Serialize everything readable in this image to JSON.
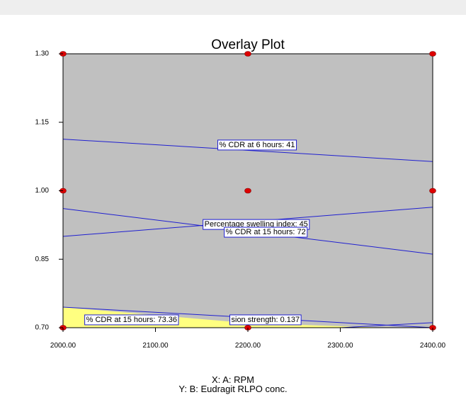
{
  "chart_data": {
    "type": "contour",
    "title": "Overlay Plot",
    "x_axis_caption": "X: A: RPM",
    "y_axis_caption": "Y: B: Eudragit RLPO conc.",
    "xlim": [
      2000,
      2400
    ],
    "ylim": [
      0.7,
      1.3
    ],
    "x_ticks": [
      "2000.00",
      "2100.00",
      "2200.00",
      "2300.00",
      "2400.00"
    ],
    "x_tick_values": [
      2000,
      2100,
      2200,
      2300,
      2400
    ],
    "y_ticks": [
      "1.30",
      "1.15",
      "1.00",
      "0.85",
      "0.70"
    ],
    "y_tick_values": [
      1.3,
      1.15,
      1.0,
      0.85,
      0.7
    ],
    "plot_background": "#c0c0c0",
    "contour_color": "#1f1fd0",
    "feasible_region_color": "#ffff80",
    "point_color": "#dd0000",
    "contours": [
      {
        "label": "% CDR at 6 hours: 41",
        "x": [
          2000,
          2400
        ],
        "y": [
          1.113,
          1.064
        ],
        "label_at": [
          2169,
          1.1
        ]
      },
      {
        "label": "Percentage swelling index: 45",
        "x": [
          2000,
          2400
        ],
        "y": [
          0.9,
          0.964
        ],
        "label_at": [
          2153,
          0.926
        ]
      },
      {
        "label": "% CDR at 15 hours: 72",
        "x": [
          2000,
          2400
        ],
        "y": [
          0.961,
          0.861
        ],
        "label_at": [
          2176,
          0.909
        ]
      },
      {
        "label": "% CDR at 15 hours: 73.36",
        "x": [
          2000,
          2400
        ],
        "y": [
          0.745,
          0.7
        ],
        "label_at": [
          2025,
          0.717
        ]
      },
      {
        "label": "sion strength: 0.137",
        "x": [
          2000,
          2300,
          2400
        ],
        "y": [
          0.7,
          0.7,
          0.711
        ],
        "label_at": [
          2182,
          0.717
        ]
      }
    ],
    "feasible_region": {
      "x": [
        2000,
        2000,
        2200,
        2350,
        2200,
        2000
      ],
      "y": [
        0.756,
        0.745,
        0.71,
        0.7,
        0.7,
        0.7
      ]
    },
    "design_points": [
      {
        "x": 2000,
        "y": 1.3
      },
      {
        "x": 2200,
        "y": 1.3
      },
      {
        "x": 2400,
        "y": 1.3
      },
      {
        "x": 2000,
        "y": 1.0
      },
      {
        "x": 2200,
        "y": 1.0
      },
      {
        "x": 2400,
        "y": 1.0
      },
      {
        "x": 2000,
        "y": 0.7
      },
      {
        "x": 2200,
        "y": 0.7
      },
      {
        "x": 2400,
        "y": 0.7
      }
    ]
  }
}
